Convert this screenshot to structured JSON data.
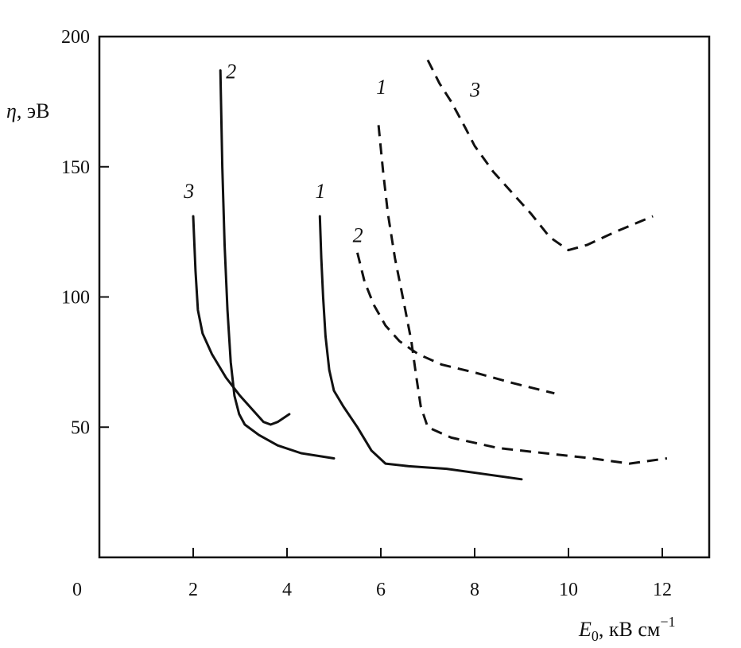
{
  "chart_data": {
    "type": "line",
    "title": "",
    "xlabel_main": "E",
    "xlabel_sub": "0",
    "xlabel_unit": ", кВ см",
    "xlabel_sup": "−1",
    "ylabel_main": "η",
    "ylabel_unit": ", эВ",
    "xlim": [
      0,
      13
    ],
    "ylim": [
      0,
      200
    ],
    "x_ticks": [
      0,
      2,
      4,
      6,
      8,
      10,
      12
    ],
    "x_tick_labels": [
      "0",
      "2",
      "4",
      "6",
      "8",
      "10",
      "12"
    ],
    "y_ticks": [
      50,
      100,
      150,
      200
    ],
    "y_tick_labels": [
      "50",
      "100",
      "150",
      "200"
    ],
    "grid": false,
    "series": [
      {
        "style": "solid",
        "label": "3",
        "label_at": [
          1.8,
          138
        ],
        "x": [
          2.0,
          2.05,
          2.1,
          2.2,
          2.4,
          2.7,
          3.0,
          3.3,
          3.5,
          3.65,
          3.8,
          4.05
        ],
        "y": [
          131,
          110,
          95,
          86,
          78,
          69,
          62,
          56,
          52,
          51,
          52,
          55
        ]
      },
      {
        "style": "solid",
        "label": "2",
        "label_at": [
          2.7,
          184
        ],
        "x": [
          2.58,
          2.62,
          2.67,
          2.73,
          2.8,
          2.88,
          2.98,
          3.1,
          3.4,
          3.8,
          4.3,
          5.0
        ],
        "y": [
          187,
          150,
          120,
          95,
          75,
          62,
          55,
          51,
          47,
          43,
          40,
          38
        ]
      },
      {
        "style": "solid",
        "label": "1",
        "label_at": [
          4.6,
          138
        ],
        "x": [
          4.7,
          4.73,
          4.77,
          4.82,
          4.9,
          5.0,
          5.2,
          5.5,
          5.8,
          6.1,
          6.6,
          7.4,
          8.2,
          9.0
        ],
        "y": [
          131,
          115,
          100,
          85,
          72,
          64,
          58,
          50,
          41,
          36,
          35,
          34,
          32,
          30
        ]
      },
      {
        "style": "dashed",
        "label": "1",
        "label_at": [
          5.9,
          178
        ],
        "x": [
          5.95,
          6.05,
          6.15,
          6.3,
          6.5,
          6.65,
          6.75,
          6.85,
          7.0,
          7.5,
          8.5,
          9.5,
          10.5,
          11.3,
          12.1
        ],
        "y": [
          166,
          148,
          132,
          115,
          97,
          83,
          70,
          58,
          50,
          46,
          42,
          40,
          38,
          36,
          38
        ]
      },
      {
        "style": "dashed",
        "label": "2",
        "label_at": [
          5.4,
          121
        ],
        "x": [
          5.5,
          5.65,
          5.85,
          6.1,
          6.4,
          6.8,
          7.3,
          8.0,
          8.8,
          9.7
        ],
        "y": [
          117,
          106,
          97,
          89,
          83,
          78,
          74,
          71,
          67,
          63
        ]
      },
      {
        "style": "dashed",
        "label": "3",
        "label_at": [
          7.9,
          177
        ],
        "x": [
          7.0,
          7.25,
          7.5,
          7.8,
          8.0,
          8.4,
          8.8,
          9.2,
          9.6,
          10.0,
          10.4,
          11.0,
          11.8
        ],
        "y": [
          191,
          182,
          175,
          165,
          158,
          148,
          140,
          132,
          123,
          118,
          120,
          125,
          131
        ]
      }
    ]
  }
}
